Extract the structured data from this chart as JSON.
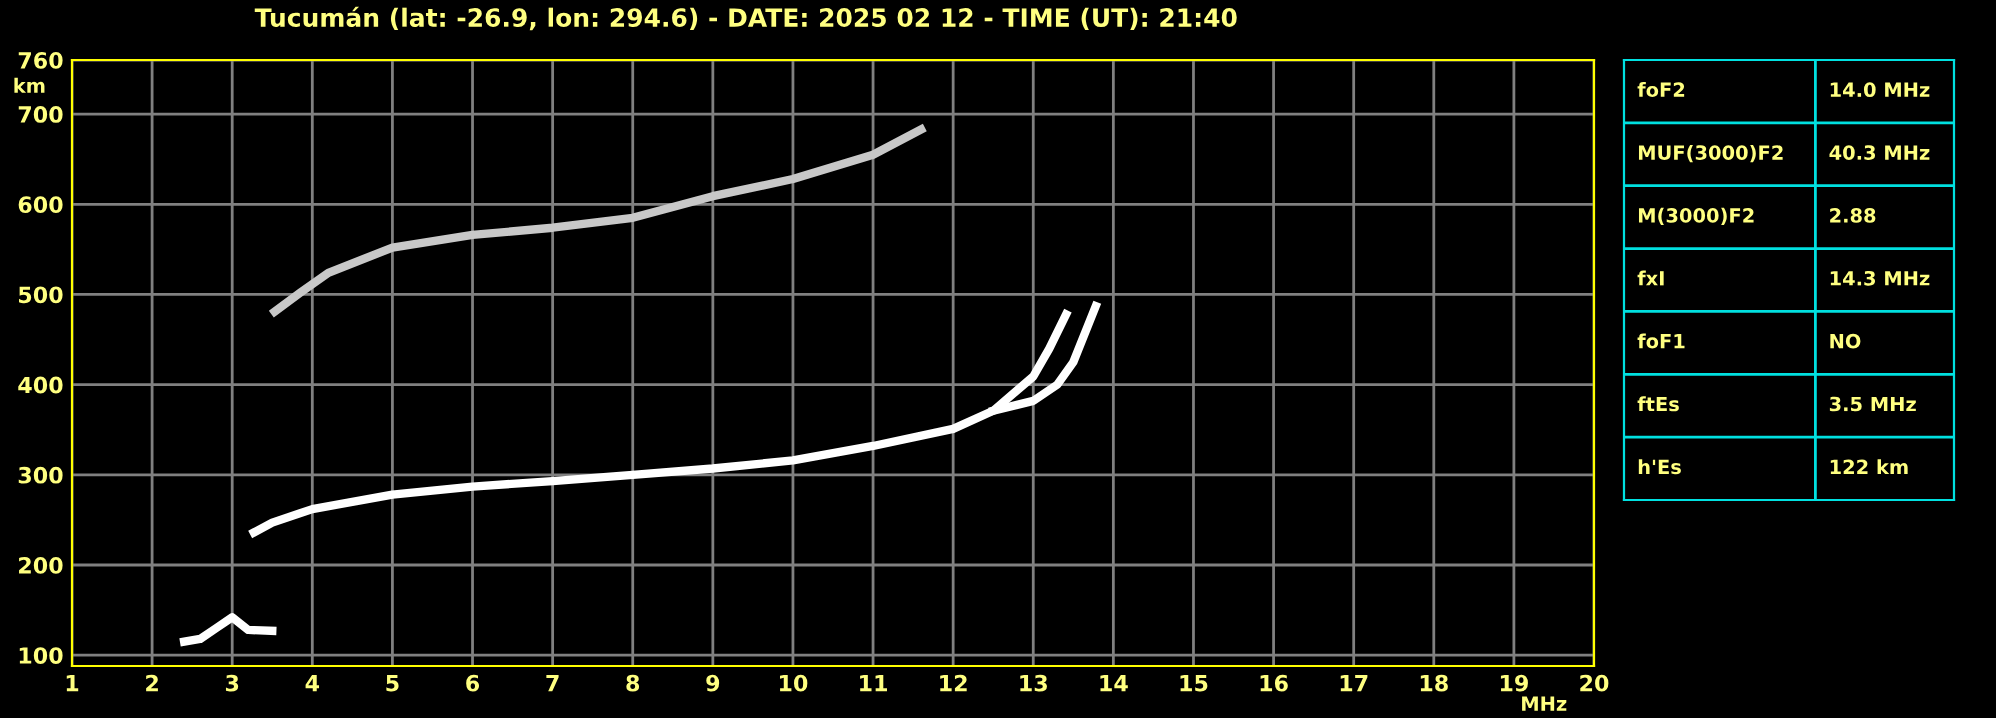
{
  "chart_data": [
    {
      "type": "line",
      "title": "Tucumán (lat: -26.9, lon: 294.6) - DATE: 2025 02 12 - TIME (UT): 21:40",
      "xlabel": "MHz",
      "ylabel": "km",
      "xlim": [
        1,
        20
      ],
      "ylim": [
        88,
        760
      ],
      "xticks": [
        1,
        2,
        3,
        4,
        5,
        6,
        7,
        8,
        9,
        10,
        11,
        12,
        13,
        14,
        15,
        16,
        17,
        18,
        19,
        20
      ],
      "yticks": [
        100,
        200,
        300,
        400,
        500,
        600,
        700,
        760
      ],
      "grid": true,
      "marker": "none",
      "line_style": "solid",
      "series": [
        {
          "color": "#ffffff",
          "x": [
            3.27,
            3.5,
            4,
            5,
            6,
            7,
            8,
            9,
            10,
            11,
            12,
            12.5,
            13.0,
            13.2,
            13.41
          ],
          "values": [
            236,
            247,
            262,
            278,
            287,
            293,
            300,
            307,
            316,
            332,
            351,
            371,
            409,
            440,
            478
          ]
        },
        {
          "color": "#ffffff",
          "x": [
            12.5,
            13.0,
            13.3,
            13.5,
            13.78
          ],
          "values": [
            371,
            382,
            400,
            425,
            487
          ]
        },
        {
          "color": "#c8c8c8",
          "x": [
            3.53,
            3.85,
            4.2,
            5,
            6,
            7,
            8,
            9,
            10,
            11,
            11.6
          ],
          "values": [
            481,
            502,
            524,
            552,
            566,
            574,
            585,
            609,
            628,
            655,
            683
          ]
        },
        {
          "color": "#ffffff",
          "x": [
            2.4,
            2.6,
            2.8,
            3.0,
            3.2,
            3.5
          ],
          "values": [
            115,
            118,
            130,
            142,
            128,
            127
          ]
        }
      ]
    },
    {
      "type": "other",
      "annotations": [
        "foF2",
        "14.0 MHz",
        "MUF(3000)F2",
        "40.3 MHz",
        "M(3000)F2",
        "2.88",
        "fxI",
        "14.3 MHz",
        "foF1",
        "NO",
        "ftEs",
        "3.5 MHz",
        "h'Es",
        "122 km"
      ]
    }
  ]
}
